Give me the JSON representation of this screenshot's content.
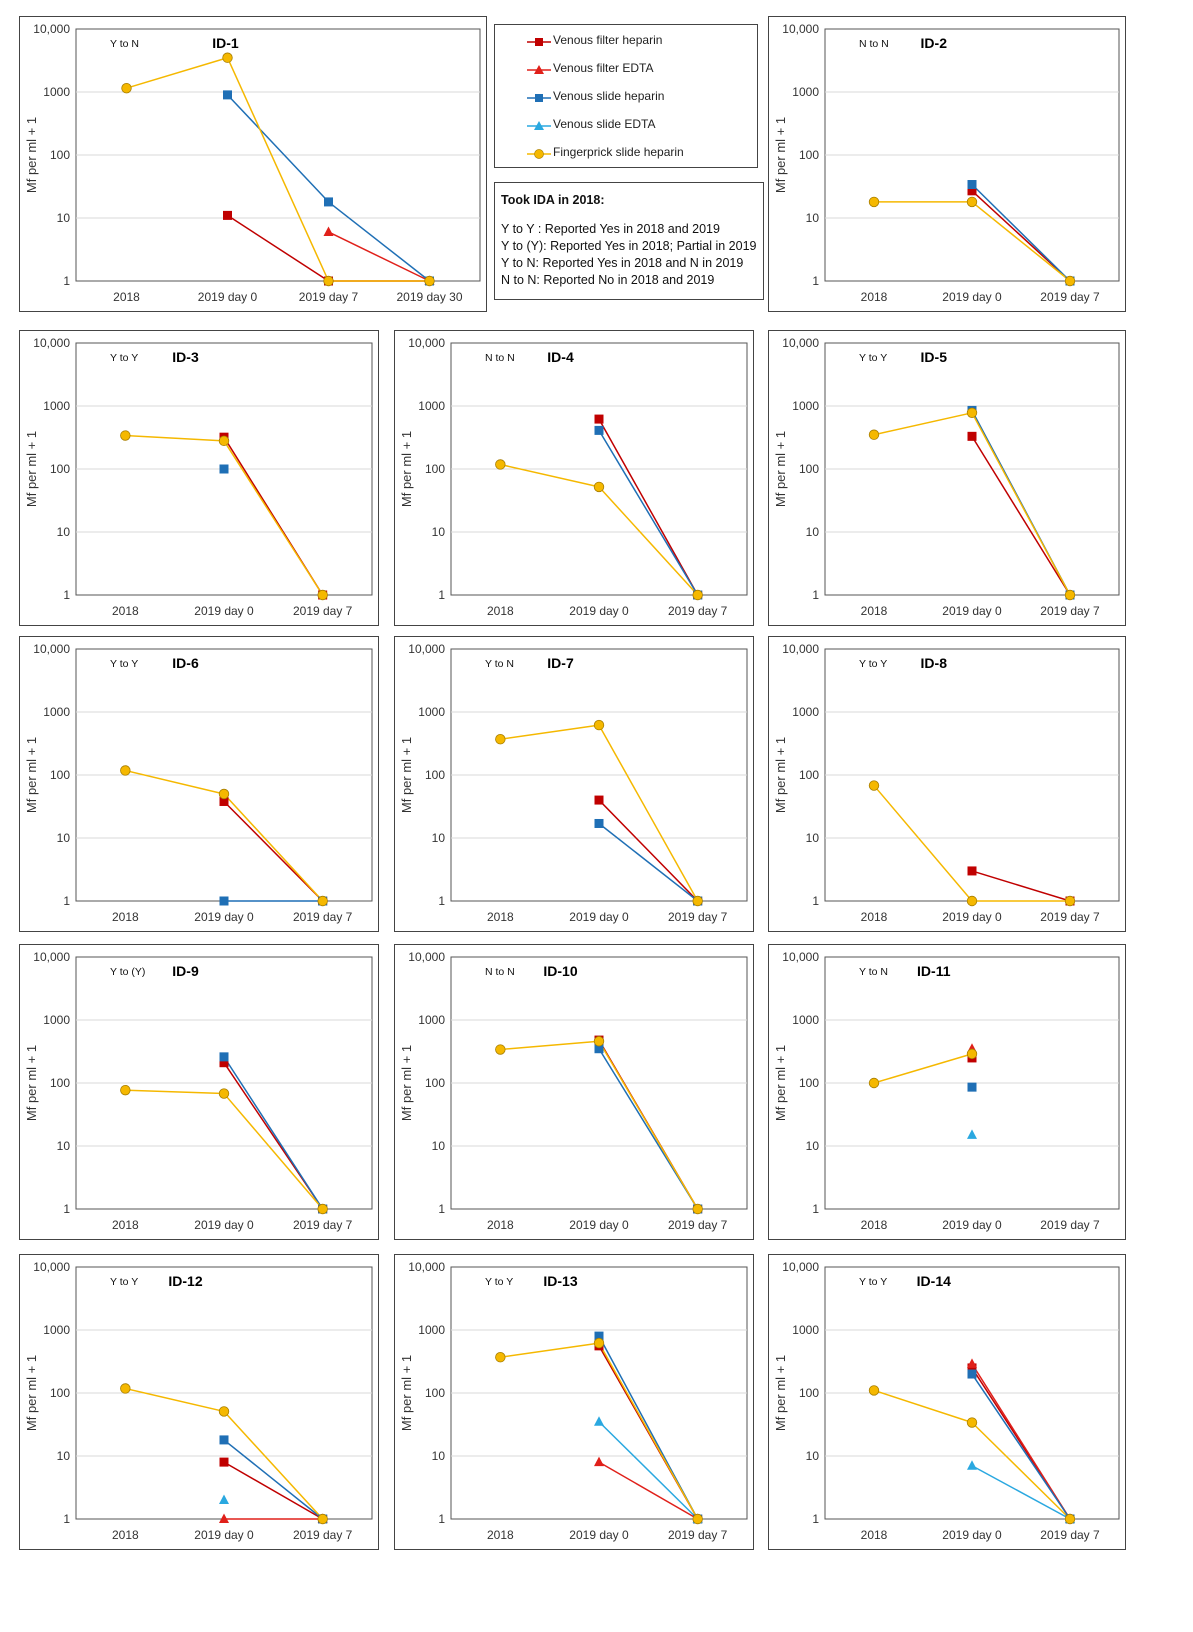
{
  "legend": {
    "items": [
      {
        "key": "vfh",
        "label": "Venous filter heparin",
        "color": "#C00000",
        "marker": "square"
      },
      {
        "key": "vfe",
        "label": "Venous filter EDTA",
        "color": "#E0201A",
        "marker": "triangle"
      },
      {
        "key": "vsh",
        "label": "Venous slide heparin",
        "color": "#1F6FB5",
        "marker": "square"
      },
      {
        "key": "vse",
        "label": "Venous slide EDTA",
        "color": "#2AA8E0",
        "marker": "triangle"
      },
      {
        "key": "fsh",
        "label": "Fingerprick slide heparin",
        "color": "#F5B800",
        "marker": "circle"
      }
    ]
  },
  "key": {
    "title": "Took IDA in 2018:",
    "lines": [
      "Y to Y :  Reported Yes in 2018 and 2019",
      "Y to (Y): Reported Yes in 2018; Partial in 2019",
      "Y to N: Reported Yes in 2018 and N in 2019",
      "N to N:  Reported No in 2018 and 2019"
    ]
  },
  "axis": {
    "ylabel": "Mf per ml + 1",
    "yticks": [
      "1",
      "10",
      "100",
      "1000",
      "10,000"
    ]
  },
  "chart_data": [
    {
      "id": "ID-1",
      "status": "Y to N",
      "type": "line",
      "categories": [
        "2018",
        "2019 day 0",
        "2019 day 7",
        "2019 day 30"
      ],
      "series": [
        {
          "key": "vfh",
          "values": [
            null,
            11,
            1,
            1
          ]
        },
        {
          "key": "vfe",
          "values": [
            null,
            null,
            6,
            1
          ]
        },
        {
          "key": "vsh",
          "values": [
            null,
            900,
            18,
            1
          ]
        },
        {
          "key": "fsh",
          "values": [
            1150,
            3500,
            1,
            1
          ]
        }
      ]
    },
    {
      "id": "ID-2",
      "status": "N to N",
      "type": "line",
      "categories": [
        "2018",
        "2019 day 0",
        "2019 day 7"
      ],
      "series": [
        {
          "key": "vfh",
          "values": [
            null,
            27,
            1
          ]
        },
        {
          "key": "vsh",
          "values": [
            null,
            34,
            1
          ]
        },
        {
          "key": "fsh",
          "values": [
            18,
            18,
            1
          ]
        }
      ]
    },
    {
      "id": "ID-3",
      "status": "Y to Y",
      "type": "line",
      "categories": [
        "2018",
        "2019 day 0",
        "2019 day 7"
      ],
      "series": [
        {
          "key": "vfh",
          "values": [
            null,
            320,
            1
          ]
        },
        {
          "key": "vsh",
          "values": [
            null,
            100,
            null
          ]
        },
        {
          "key": "fsh",
          "values": [
            340,
            280,
            1
          ]
        }
      ]
    },
    {
      "id": "ID-4",
      "status": "N to N",
      "type": "line",
      "categories": [
        "2018",
        "2019 day 0",
        "2019 day 7"
      ],
      "series": [
        {
          "key": "vfh",
          "values": [
            null,
            620,
            1
          ]
        },
        {
          "key": "vsh",
          "values": [
            null,
            410,
            1
          ]
        },
        {
          "key": "fsh",
          "values": [
            118,
            52,
            1
          ]
        }
      ]
    },
    {
      "id": "ID-5",
      "status": "Y to Y",
      "type": "line",
      "categories": [
        "2018",
        "2019 day 0",
        "2019 day 7"
      ],
      "series": [
        {
          "key": "vfh",
          "values": [
            null,
            330,
            1
          ]
        },
        {
          "key": "vsh",
          "values": [
            null,
            850,
            1
          ]
        },
        {
          "key": "fsh",
          "values": [
            350,
            780,
            1
          ]
        }
      ]
    },
    {
      "id": "ID-6",
      "status": "Y to Y",
      "type": "line",
      "categories": [
        "2018",
        "2019 day 0",
        "2019 day 7"
      ],
      "series": [
        {
          "key": "vfh",
          "values": [
            null,
            38,
            1
          ]
        },
        {
          "key": "vsh",
          "values": [
            null,
            1,
            1
          ]
        },
        {
          "key": "fsh",
          "values": [
            118,
            50,
            1
          ]
        }
      ]
    },
    {
      "id": "ID-7",
      "status": "Y to N",
      "type": "line",
      "categories": [
        "2018",
        "2019 day 0",
        "2019 day 7"
      ],
      "series": [
        {
          "key": "vfh",
          "values": [
            null,
            40,
            1
          ]
        },
        {
          "key": "vsh",
          "values": [
            null,
            17,
            1
          ]
        },
        {
          "key": "fsh",
          "values": [
            370,
            620,
            1
          ]
        }
      ]
    },
    {
      "id": "ID-8",
      "status": "Y to Y",
      "type": "line",
      "categories": [
        "2018",
        "2019 day 0",
        "2019 day 7"
      ],
      "series": [
        {
          "key": "vfh",
          "values": [
            null,
            3,
            1
          ]
        },
        {
          "key": "fsh",
          "values": [
            68,
            1,
            1
          ]
        }
      ]
    },
    {
      "id": "ID-9",
      "status": "Y to (Y)",
      "type": "line",
      "categories": [
        "2018",
        "2019 day 0",
        "2019 day 7"
      ],
      "series": [
        {
          "key": "vfh",
          "values": [
            null,
            210,
            1
          ]
        },
        {
          "key": "vsh",
          "values": [
            null,
            260,
            1
          ]
        },
        {
          "key": "fsh",
          "values": [
            77,
            68,
            1
          ]
        }
      ]
    },
    {
      "id": "ID-10",
      "status": "N to N",
      "type": "line",
      "categories": [
        "2018",
        "2019 day 0",
        "2019 day 7"
      ],
      "series": [
        {
          "key": "vfh",
          "values": [
            null,
            480,
            1
          ]
        },
        {
          "key": "vsh",
          "values": [
            null,
            350,
            1
          ]
        },
        {
          "key": "fsh",
          "values": [
            340,
            460,
            1
          ]
        }
      ]
    },
    {
      "id": "ID-11",
      "status": "Y to N",
      "type": "line",
      "categories": [
        "2018",
        "2019 day 0",
        "2019 day 7"
      ],
      "series": [
        {
          "key": "vfh",
          "values": [
            null,
            250,
            null
          ]
        },
        {
          "key": "vfe",
          "values": [
            null,
            350,
            null
          ]
        },
        {
          "key": "vsh",
          "values": [
            null,
            86,
            null
          ]
        },
        {
          "key": "vse",
          "values": [
            null,
            15,
            null
          ]
        },
        {
          "key": "fsh",
          "values": [
            100,
            290,
            null
          ]
        }
      ]
    },
    {
      "id": "ID-12",
      "status": "Y to Y",
      "type": "line",
      "categories": [
        "2018",
        "2019 day 0",
        "2019 day 7"
      ],
      "series": [
        {
          "key": "vfh",
          "values": [
            null,
            8,
            1
          ]
        },
        {
          "key": "vfe",
          "values": [
            null,
            1,
            1
          ]
        },
        {
          "key": "vsh",
          "values": [
            null,
            18,
            1
          ]
        },
        {
          "key": "vse",
          "values": [
            null,
            2,
            null
          ]
        },
        {
          "key": "fsh",
          "values": [
            118,
            51,
            1
          ]
        }
      ]
    },
    {
      "id": "ID-13",
      "status": "Y to Y",
      "type": "line",
      "categories": [
        "2018",
        "2019 day 0",
        "2019 day 7"
      ],
      "series": [
        {
          "key": "vfh",
          "values": [
            null,
            560,
            1
          ]
        },
        {
          "key": "vfe",
          "values": [
            null,
            8,
            1
          ]
        },
        {
          "key": "vsh",
          "values": [
            null,
            800,
            1
          ]
        },
        {
          "key": "vse",
          "values": [
            null,
            35,
            1
          ]
        },
        {
          "key": "fsh",
          "values": [
            370,
            620,
            1
          ]
        }
      ]
    },
    {
      "id": "ID-14",
      "status": "Y to Y",
      "type": "line",
      "categories": [
        "2018",
        "2019 day 0",
        "2019 day 7"
      ],
      "series": [
        {
          "key": "vfh",
          "values": [
            null,
            250,
            1
          ]
        },
        {
          "key": "vfe",
          "values": [
            null,
            290,
            1
          ]
        },
        {
          "key": "vsh",
          "values": [
            null,
            200,
            1
          ]
        },
        {
          "key": "vse",
          "values": [
            null,
            7,
            1
          ]
        },
        {
          "key": "fsh",
          "values": [
            110,
            34,
            1
          ]
        }
      ]
    }
  ]
}
